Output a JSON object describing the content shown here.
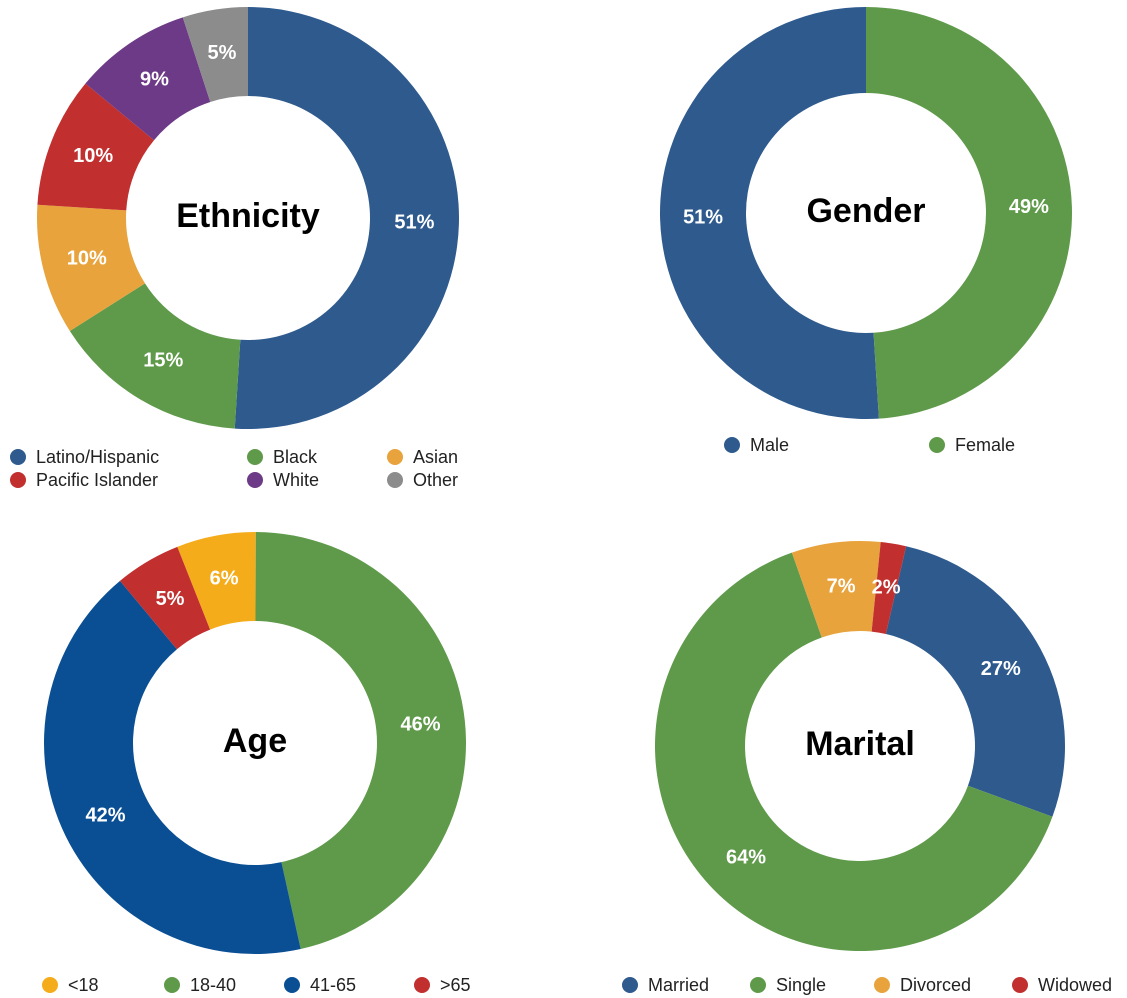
{
  "chart_data": [
    {
      "type": "pie",
      "title": "Ethnicity",
      "categories": [
        "Latino/Hispanic",
        "Black",
        "Asian",
        "Pacific Islander",
        "White",
        "Other"
      ],
      "values": [
        51,
        15,
        10,
        10,
        9,
        5
      ],
      "value_labels": [
        "51%",
        "15%",
        "10%",
        "10%",
        "9%",
        "5%"
      ],
      "colors": [
        "#2e5a8e",
        "#5f9a4a",
        "#e8a33c",
        "#c1302f",
        "#6d3a87",
        "#8c8c8c"
      ],
      "start_angle": 0
    },
    {
      "type": "pie",
      "title": "Gender",
      "categories": [
        "Male",
        "Female"
      ],
      "values": [
        51,
        49
      ],
      "value_labels": [
        "51%",
        "49%"
      ],
      "colors": [
        "#2e5a8e",
        "#5f9a4a"
      ],
      "start_angle": 176.4
    },
    {
      "type": "pie",
      "title": "Age",
      "categories": [
        "<18",
        "18-40",
        "41-65",
        ">65"
      ],
      "values": [
        6,
        46,
        42,
        5
      ],
      "value_labels": [
        "6%",
        "46%",
        "42%",
        "5%"
      ],
      "colors": [
        "#f5ac1b",
        "#5f9a4a",
        "#0a4f94",
        "#c1302f"
      ],
      "start_angle": -21.6
    },
    {
      "type": "pie",
      "title": "Marital",
      "categories": [
        "Married",
        "Single",
        "Divorced",
        "Widowed"
      ],
      "values": [
        27,
        64,
        7,
        2
      ],
      "value_labels": [
        "27%",
        "64%",
        "7%",
        "2%"
      ],
      "colors": [
        "#2e5a8e",
        "#5f9a4a",
        "#e8a33c",
        "#c1302f"
      ],
      "start_angle": 13
    }
  ]
}
